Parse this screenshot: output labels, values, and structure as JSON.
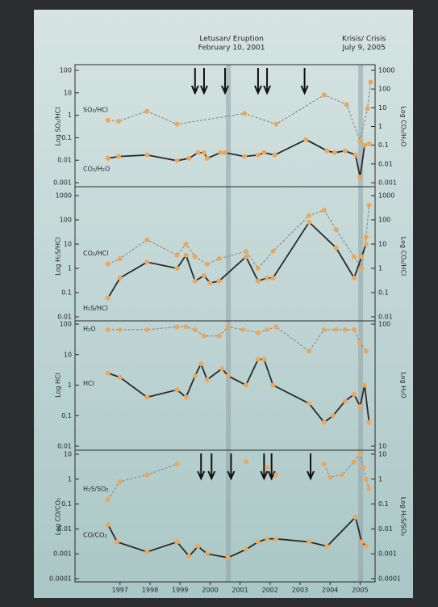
{
  "events": [
    {
      "x": 2001.11,
      "text": [
        "Letusan/ Eruption",
        "February 10, 2001"
      ]
    },
    {
      "x": 2005.52,
      "text": [
        "Krisis/ Crisis",
        "July 9, 2005"
      ]
    }
  ],
  "chart_data": [
    {
      "type": "line",
      "log_scale": true,
      "ylabel": "Log SO₂/HCl",
      "y2label": "Log CO₂/H₂O",
      "xlim": [
        1996,
        2006
      ],
      "ylim": [
        0.001,
        100
      ],
      "yticks": [
        0.001,
        0.01,
        0.1,
        1,
        10,
        100
      ],
      "y2lim": [
        0.001,
        1000
      ],
      "y2ticks": [
        0.001,
        0.01,
        0.1,
        1,
        10,
        100,
        1000
      ],
      "arrows": [
        2000.0,
        2000.3,
        2001.0,
        2002.1,
        2002.4,
        2003.65
      ],
      "series": [
        {
          "name": "SO₂/HCl",
          "color": "#8a8f8f",
          "dashed": true,
          "marker_color": "#eda65a",
          "x": [
            1997.1,
            1997.45,
            1998.4,
            1999.4,
            2001.65,
            2002.7,
            2004.3,
            2005.05,
            2005.5,
            2005.75,
            2005.85
          ],
          "values": [
            0.6,
            0.55,
            1.5,
            0.4,
            1.2,
            0.4,
            8,
            3,
            0.07,
            2,
            30
          ]
        },
        {
          "name": "CO₂/H₂O",
          "color": "#2a2a2a",
          "dashed": false,
          "marker_color": "#eda65a",
          "axis": "y2",
          "x": [
            1997.1,
            1997.45,
            1998.4,
            1999.4,
            1999.8,
            2000.1,
            2000.3,
            2000.4,
            2000.85,
            2001.0,
            2001.65,
            2002.1,
            2002.3,
            2002.65,
            2003.7,
            2004.4,
            2004.65,
            2005.0,
            2005.35,
            2005.5,
            2005.65,
            2005.8
          ],
          "values": [
            0.02,
            0.025,
            0.03,
            0.015,
            0.02,
            0.04,
            0.04,
            0.02,
            0.04,
            0.04,
            0.025,
            0.03,
            0.04,
            0.03,
            0.2,
            0.05,
            0.04,
            0.05,
            0.03,
            0.002,
            0.1,
            0.12
          ]
        }
      ]
    },
    {
      "type": "line",
      "log_scale": true,
      "ylabel": "Log H₂S/HCl",
      "y2label": "Log CO₂/HCl",
      "xlim": [
        1996,
        2006
      ],
      "ylim": [
        0.01,
        1000
      ],
      "yticks": [
        0.01,
        0.1,
        1,
        10,
        100,
        1000
      ],
      "y2lim": [
        0.01,
        1000
      ],
      "y2ticks": [
        0.01,
        0.1,
        1,
        10,
        100,
        1000
      ],
      "series": [
        {
          "name": "CO₂/HCl",
          "color": "#8a8f8f",
          "dashed": true,
          "marker_color": "#eda65a",
          "axis": "y2",
          "x": [
            1997.1,
            1997.5,
            1998.4,
            1999.4,
            1999.7,
            2000.0,
            2000.4,
            2000.8,
            2001.7,
            2002.1,
            2002.6,
            2003.8,
            2004.3,
            2004.7,
            2005.3,
            2005.55,
            2005.7,
            2005.8
          ],
          "values": [
            1.5,
            2.5,
            15,
            3.5,
            10,
            3,
            1.5,
            2.5,
            5,
            1,
            5,
            150,
            250,
            40,
            3,
            1,
            20,
            400
          ]
        },
        {
          "name": "H₂S/HCl",
          "color": "#2a2a2a",
          "dashed": false,
          "marker_color": "#eda65a",
          "x": [
            1997.1,
            1997.5,
            1998.4,
            1999.4,
            1999.7,
            2000.0,
            2000.3,
            2000.5,
            2000.8,
            2001.7,
            2002.1,
            2002.4,
            2002.6,
            2003.8,
            2004.7,
            2005.3,
            2005.55,
            2005.7
          ],
          "values": [
            0.06,
            0.4,
            1.8,
            1,
            3.5,
            0.3,
            0.5,
            0.25,
            0.3,
            3,
            0.3,
            0.4,
            0.4,
            80,
            7,
            0.4,
            3,
            10
          ]
        }
      ]
    },
    {
      "type": "line",
      "log_scale": true,
      "ylabel": "Log HCl",
      "y2label": "Log H₂O",
      "xlim": [
        1996,
        2006
      ],
      "ylim": [
        0.01,
        100
      ],
      "yticks": [
        0.01,
        0.1,
        1,
        10,
        100
      ],
      "y2lim": [
        10,
        100
      ],
      "y2ticks": [
        10,
        100
      ],
      "series": [
        {
          "name": "H₂O",
          "color": "#8a8f8f",
          "dashed": true,
          "marker_color": "#eda65a",
          "axis": "y2",
          "x": [
            1997.1,
            1997.5,
            1998.4,
            1999.4,
            1999.7,
            2000.0,
            2000.3,
            2000.8,
            2001.1,
            2001.6,
            2002.1,
            2002.4,
            2002.7,
            2003.8,
            2004.3,
            2004.7,
            2005.0,
            2005.3,
            2005.5,
            2005.7
          ],
          "values": [
            90,
            90,
            90,
            95,
            95,
            90,
            80,
            80,
            95,
            90,
            85,
            90,
            95,
            60,
            90,
            90,
            90,
            90,
            70,
            60
          ]
        },
        {
          "name": "HCl",
          "color": "#2a2a2a",
          "dashed": false,
          "marker_color": "#eda65a",
          "x": [
            1997.1,
            1997.5,
            1998.4,
            1999.4,
            1999.7,
            2000.0,
            2000.2,
            2000.4,
            2000.9,
            2001.1,
            2001.7,
            2002.1,
            2002.3,
            2002.6,
            2003.8,
            2004.3,
            2004.6,
            2005.0,
            2005.3,
            2005.5,
            2005.65,
            2005.8
          ],
          "values": [
            2.5,
            1.8,
            0.4,
            0.7,
            0.4,
            2,
            5,
            1.5,
            3.5,
            2,
            1,
            7,
            7,
            1,
            0.25,
            0.06,
            0.1,
            0.3,
            0.5,
            0.2,
            1,
            0.06
          ]
        }
      ]
    },
    {
      "type": "line",
      "log_scale": true,
      "ylabel": "Log CO/CO₂",
      "y2label": "Log H₂S/SO₂",
      "xlim": [
        1996,
        2006
      ],
      "ylim": [
        0.0001,
        10
      ],
      "yticks": [
        0.0001,
        0.001,
        0.01,
        0.1,
        1,
        10
      ],
      "y2lim": [
        0.0001,
        10
      ],
      "y2ticks": [
        0.0001,
        0.001,
        0.01,
        0.1,
        1,
        10
      ],
      "arrows": [
        2000.2,
        2000.55,
        2001.2,
        2002.3,
        2002.55,
        2003.85
      ],
      "xticks": [
        {
          "value": 1997.5,
          "label": "1997"
        },
        {
          "value": 1998.5,
          "label": "1998"
        },
        {
          "value": 1999.5,
          "label": "1999"
        },
        {
          "value": 2000.5,
          "label": "2000"
        },
        {
          "value": 2001.5,
          "label": "2001"
        },
        {
          "value": 2002.5,
          "label": "2002"
        },
        {
          "value": 2003.5,
          "label": "2003"
        },
        {
          "value": 2004.5,
          "label": "2004"
        },
        {
          "value": 2005.5,
          "label": "2005"
        }
      ],
      "series": [
        {
          "name": "H₂S/SO₂",
          "color": "#8a8f8f",
          "dashed": true,
          "marker_color": "#eda65a",
          "axis": "y2",
          "x": [
            1997.1,
            1997.5,
            1998.4,
            1999.4,
            2000.5,
            2001.7,
            2001.9,
            2002.4,
            2002.55,
            2002.7,
            2003.5,
            2004.3,
            2004.5,
            2004.9,
            2005.3,
            2005.5,
            2005.6,
            2005.7,
            2005.8
          ],
          "values": [
            0.15,
            0.8,
            1.5,
            4,
            null,
            5,
            null,
            3,
            null,
            1.5,
            null,
            4,
            1.2,
            1.5,
            5,
            10,
            3,
            1,
            0.4
          ]
        },
        {
          "name": "CO/CO₂",
          "color": "#2a2a2a",
          "dashed": false,
          "marker_color": "#eda65a",
          "x": [
            1997.1,
            1997.4,
            1998.4,
            1999.4,
            1999.8,
            2000.1,
            2000.4,
            2001.1,
            2001.7,
            2002.1,
            2002.4,
            2002.7,
            2003.8,
            2004.4,
            2005.35,
            2005.55,
            2005.7
          ],
          "values": [
            0.015,
            0.003,
            0.0012,
            0.003,
            0.0008,
            0.002,
            0.001,
            0.0007,
            0.0015,
            0.003,
            0.004,
            0.004,
            0.003,
            0.002,
            0.03,
            0.003,
            0.002
          ]
        }
      ]
    }
  ]
}
